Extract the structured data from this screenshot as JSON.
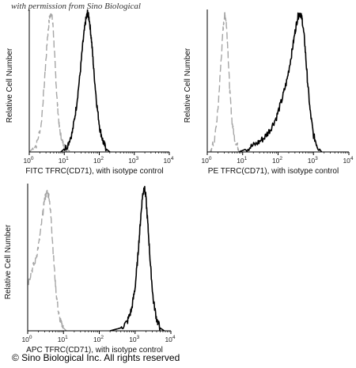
{
  "watermark": "with permission from Sino Biological",
  "copyright": "© Sino Biological Inc. All rights reserved",
  "colors": {
    "isotype": "#a6a6a6",
    "sample": "#000000",
    "axes": "#000000"
  },
  "chart_data": [
    {
      "type": "line",
      "title": "",
      "xlabel": "FITC TFRC(CD71), with isotype control",
      "ylabel": "Relative Cell Number",
      "xscale": "log",
      "xlim": [
        1,
        10000
      ],
      "x_ticks": [
        {
          "base": "10",
          "exp": "0"
        },
        {
          "base": "10",
          "exp": "1"
        },
        {
          "base": "10",
          "exp": "2"
        },
        {
          "base": "10",
          "exp": "3"
        },
        {
          "base": "10",
          "exp": "4"
        }
      ],
      "ylim": [
        0,
        1
      ],
      "grid": false,
      "legend": "none",
      "series": [
        {
          "role": "isotype",
          "style": "dashed",
          "color": "#a6a6a6",
          "x": [
            1,
            1.6,
            2.2,
            2.8,
            3.3,
            3.8,
            4.3,
            4.8,
            5.4,
            6.2,
            7.2,
            8.5,
            10,
            12,
            15
          ],
          "y": [
            0,
            0.05,
            0.2,
            0.55,
            0.82,
            0.97,
            1.0,
            0.9,
            0.65,
            0.38,
            0.18,
            0.08,
            0.04,
            0.02,
            0
          ]
        },
        {
          "role": "sample",
          "style": "solid",
          "color": "#000000",
          "x": [
            8,
            12,
            17,
            22,
            28,
            34,
            40,
            46,
            52,
            60,
            70,
            85,
            105,
            130,
            160,
            200
          ],
          "y": [
            0,
            0.04,
            0.14,
            0.32,
            0.55,
            0.78,
            0.93,
            1.0,
            0.95,
            0.8,
            0.58,
            0.34,
            0.16,
            0.07,
            0.02,
            0
          ]
        }
      ]
    },
    {
      "type": "line",
      "title": "",
      "xlabel": "PE TFRC(CD71), with isotype control",
      "ylabel": "Relative Cell Number",
      "xscale": "log",
      "xlim": [
        1,
        10000
      ],
      "x_ticks": [
        {
          "base": "10",
          "exp": "0"
        },
        {
          "base": "10",
          "exp": "1"
        },
        {
          "base": "10",
          "exp": "2"
        },
        {
          "base": "10",
          "exp": "3"
        },
        {
          "base": "10",
          "exp": "4"
        }
      ],
      "ylim": [
        0,
        1
      ],
      "grid": false,
      "legend": "none",
      "series": [
        {
          "role": "isotype",
          "style": "dashed",
          "color": "#a6a6a6",
          "x": [
            1.2,
            1.6,
            2.0,
            2.4,
            2.8,
            3.1,
            3.4,
            3.8,
            4.3,
            5.0,
            6.0,
            7.5,
            9.5
          ],
          "y": [
            0,
            0.08,
            0.3,
            0.62,
            0.88,
            0.99,
            0.95,
            0.75,
            0.45,
            0.22,
            0.09,
            0.03,
            0
          ]
        },
        {
          "role": "sample",
          "style": "solid",
          "color": "#000000",
          "x": [
            8,
            15,
            25,
            40,
            60,
            90,
            130,
            180,
            240,
            300,
            360,
            420,
            480,
            560,
            660,
            800,
            1000,
            1300,
            1700
          ],
          "y": [
            0,
            0.03,
            0.06,
            0.1,
            0.16,
            0.25,
            0.38,
            0.52,
            0.7,
            0.86,
            0.97,
            1.0,
            0.95,
            0.8,
            0.55,
            0.3,
            0.12,
            0.04,
            0
          ]
        }
      ]
    },
    {
      "type": "line",
      "title": "",
      "xlabel": "APC TFRC(CD71), with isotype control",
      "ylabel": "Relative Cell Number",
      "xscale": "log",
      "xlim": [
        1,
        10000
      ],
      "x_ticks": [
        {
          "base": "10",
          "exp": "0"
        },
        {
          "base": "10",
          "exp": "1"
        },
        {
          "base": "10",
          "exp": "2"
        },
        {
          "base": "10",
          "exp": "3"
        },
        {
          "base": "10",
          "exp": "4"
        }
      ],
      "ylim": [
        0,
        1
      ],
      "grid": false,
      "legend": "none",
      "series": [
        {
          "role": "isotype",
          "style": "dashed",
          "color": "#a6a6a6",
          "x": [
            1,
            1.3,
            1.7,
            2.1,
            2.6,
            3.0,
            3.5,
            4.0,
            4.6,
            5.3,
            6.2,
            7.3,
            8.6,
            10,
            12
          ],
          "y": [
            0.32,
            0.42,
            0.5,
            0.62,
            0.8,
            0.92,
            0.96,
            0.93,
            0.75,
            0.5,
            0.27,
            0.12,
            0.05,
            0.02,
            0
          ]
        },
        {
          "role": "sample",
          "style": "solid",
          "color": "#000000",
          "x": [
            200,
            400,
            600,
            800,
            1000,
            1200,
            1400,
            1600,
            1800,
            2000,
            2300,
            2700,
            3200,
            4000,
            5000,
            6500
          ],
          "y": [
            0,
            0.02,
            0.06,
            0.15,
            0.3,
            0.52,
            0.75,
            0.93,
            1.0,
            0.93,
            0.72,
            0.45,
            0.22,
            0.08,
            0.02,
            0
          ]
        }
      ]
    }
  ]
}
